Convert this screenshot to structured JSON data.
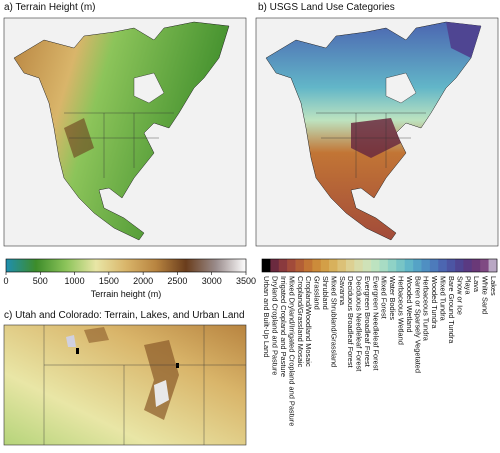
{
  "panels": {
    "a": {
      "title": "a) Terrain Height (m)"
    },
    "b": {
      "title": "b) USGS Land Use Categories"
    },
    "c": {
      "title": "c) Utah and Colorado: Terrain, Lakes, and Urban Land"
    }
  },
  "terrain_colorbar": {
    "label": "Terrain height (m)",
    "range": [
      0,
      3500
    ],
    "ticks": [
      0,
      500,
      1000,
      1500,
      2000,
      2500,
      3000,
      3500
    ],
    "colors": [
      "#1f8fb0",
      "#3d8c2a",
      "#8cc45a",
      "#e9e6a6",
      "#d9b56a",
      "#b88440",
      "#6a3d1c",
      "#9a8c8c",
      "#ffffff"
    ]
  },
  "landuse_colorbar": {
    "categories": [
      {
        "name": "Urban and Built-Up Land",
        "color": "#000000"
      },
      {
        "name": "Dryland Cropland and Pasture",
        "color": "#6b2a3f"
      },
      {
        "name": "Irrigated Cropland and Pasture",
        "color": "#8a3a3e"
      },
      {
        "name": "Mixed Dryland/Irrigated Cropland and Pasture",
        "color": "#a24b3a"
      },
      {
        "name": "Cropland/Grassland Mosaic",
        "color": "#b35f36"
      },
      {
        "name": "Cropland/Woodland Mosaic",
        "color": "#c27535"
      },
      {
        "name": "Grassland",
        "color": "#cc8b3a"
      },
      {
        "name": "Shrubland",
        "color": "#d39f47"
      },
      {
        "name": "Mixed Shrubland/Grassland",
        "color": "#d8b15c"
      },
      {
        "name": "Savanna",
        "color": "#dcc177"
      },
      {
        "name": "Deciduous Broadleaf Forest",
        "color": "#ddd092"
      },
      {
        "name": "Deciduous Needleleaf Forest",
        "color": "#d8dba8"
      },
      {
        "name": "Evergreen Broadleaf Forest",
        "color": "#cfe2b8"
      },
      {
        "name": "Evergreen Needleleaf Forest",
        "color": "#bde3c0"
      },
      {
        "name": "Mixed Forest",
        "color": "#a8dcc4"
      },
      {
        "name": "Water Bodies",
        "color": "#8fd2c6"
      },
      {
        "name": "Herbaceous Wetland",
        "color": "#78c5c6"
      },
      {
        "name": "Wooded Wetland",
        "color": "#62b6c8"
      },
      {
        "name": "Barren or Sparsely Vegetated",
        "color": "#55a3c6"
      },
      {
        "name": "Herbaceous Tundra",
        "color": "#4f8fc2"
      },
      {
        "name": "Wooded Tundra",
        "color": "#4d7bbb"
      },
      {
        "name": "Mixed Tundra",
        "color": "#4c66b1"
      },
      {
        "name": "Bare Ground Tundra",
        "color": "#4c55a3"
      },
      {
        "name": "Snow or Ice",
        "color": "#4f4592"
      },
      {
        "name": "Playa",
        "color": "#5a3a82"
      },
      {
        "name": "Lava",
        "color": "#6a3978"
      },
      {
        "name": "White Sand",
        "color": "#7f4a83"
      },
      {
        "name": "Lakes",
        "color": "#b9a7c4"
      }
    ]
  }
}
